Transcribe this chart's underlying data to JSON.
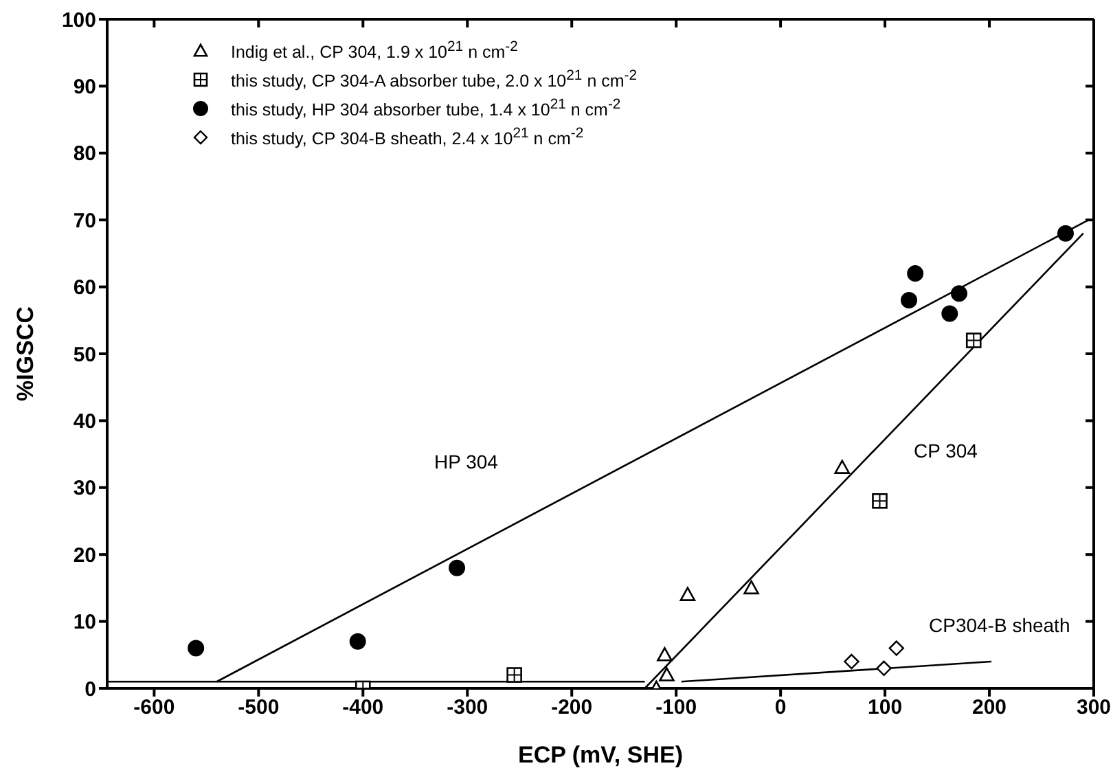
{
  "chart_data": {
    "type": "scatter",
    "xlabel": "ECP  (mV,  SHE)",
    "ylabel": "%IGSCC",
    "xlim": [
      -645,
      300
    ],
    "xticks": [
      -600,
      -500,
      -400,
      -300,
      -200,
      -100,
      0,
      100,
      200,
      300
    ],
    "ylim": [
      0,
      100
    ],
    "yticks": [
      0,
      10,
      20,
      30,
      40,
      50,
      60,
      70,
      80,
      90,
      100
    ],
    "legend": "top left",
    "series": [
      {
        "name": "Indig et al., CP 304, 1.9 x 10$^{21}$  n cm$^{-2}$",
        "marker": "triangle",
        "color": "#000000",
        "x": [
          -119,
          -109,
          -111,
          -89,
          -28,
          59
        ],
        "values": [
          0,
          2,
          5,
          14,
          15,
          33
        ]
      },
      {
        "name": "this study, CP 304-A absorber tube, 2.0 x 10$^{21}$  n cm$^{-2}$",
        "marker": "square",
        "color": "#000000",
        "x": [
          -400,
          -255,
          95,
          185
        ],
        "values": [
          0,
          2,
          28,
          52
        ]
      },
      {
        "name": "this study, HP 304 absorber tube, 1.4 x 10$^{21}$  n cm$^{-2}$",
        "marker": "circle",
        "color": "#000000",
        "x": [
          -560,
          -405,
          -310,
          123,
          129,
          162,
          171,
          273
        ],
        "values": [
          6,
          7,
          18,
          58,
          62,
          56,
          59,
          68
        ]
      },
      {
        "name": "this study, CP 304-B sheath, 2.4 x 10$^{21}$  n cm$^{-2}$",
        "marker": "diamond",
        "color": "#000000",
        "x": [
          68,
          99,
          111
        ],
        "values": [
          4,
          3,
          6
        ]
      },
      {
        "type": "line",
        "color": "#000000",
        "x": [
          -540,
          295
        ],
        "values": [
          1,
          70
        ]
      },
      {
        "type": "line",
        "color": "#000000",
        "x": [
          -130,
          290
        ],
        "values": [
          0,
          68
        ]
      },
      {
        "type": "line",
        "color": "#000000",
        "x": [
          -95,
          202
        ],
        "values": [
          1,
          4
        ]
      },
      {
        "type": "line",
        "color": "#000000",
        "x": [
          -645,
          -130
        ],
        "values": [
          1,
          1
        ]
      }
    ],
    "annotations": [
      "HP 304",
      "CP 304",
      "CP304-B sheath"
    ]
  }
}
